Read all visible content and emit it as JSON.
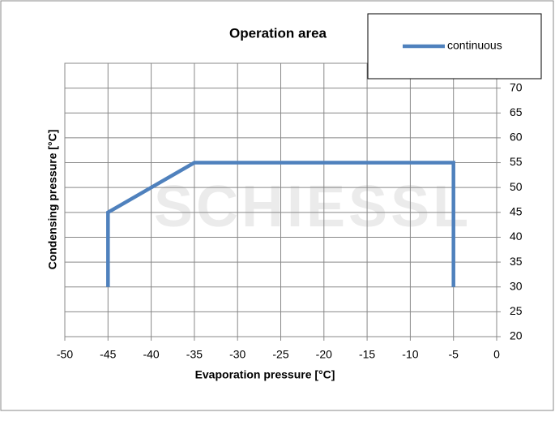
{
  "chart_data": {
    "type": "line",
    "title": "Operation area",
    "watermark": "SCHIESSL",
    "x_label": "Evaporation pressure [°C]",
    "y_label": "Condensing pressure [°C]",
    "x": [
      -45,
      -45,
      -35,
      -5,
      -5
    ],
    "series": [
      {
        "name": "continuous",
        "color": "#4f81bd",
        "values": [
          30,
          45,
          55,
          55,
          30
        ]
      }
    ],
    "xlim": [
      -50,
      0
    ],
    "xticks": [
      -50,
      -45,
      -40,
      -35,
      -30,
      -25,
      -20,
      -15,
      -10,
      -5,
      0
    ],
    "ylim": [
      20,
      75
    ],
    "yticks": [
      20,
      25,
      30,
      35,
      40,
      45,
      50,
      55,
      60,
      65,
      70
    ],
    "grid": true,
    "legend": "top-right",
    "y_axis_side": "right"
  }
}
